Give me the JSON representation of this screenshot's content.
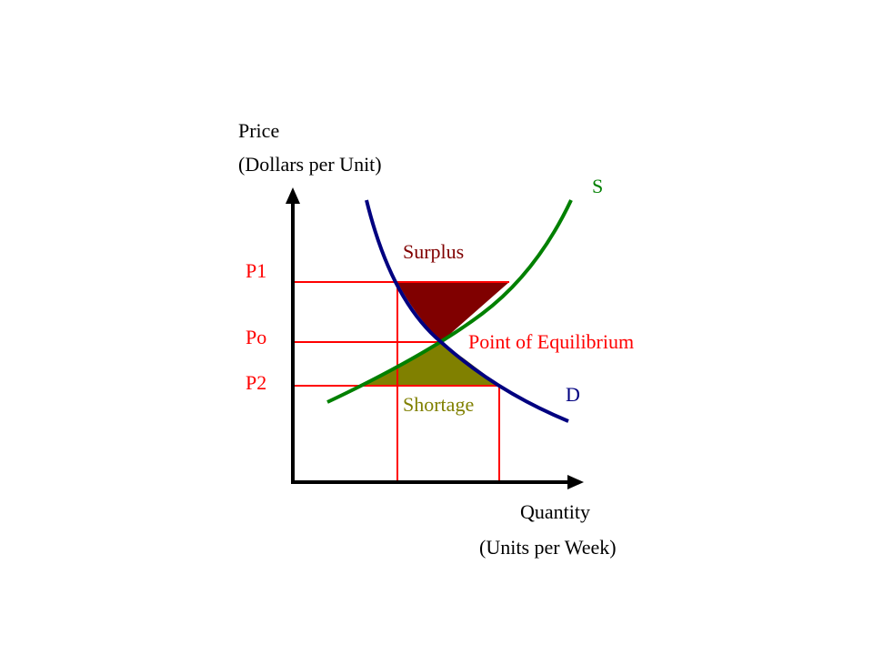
{
  "y_axis": {
    "title": "Price",
    "subtitle": "(Dollars per Unit)"
  },
  "x_axis": {
    "title": "Quantity",
    "subtitle": "(Units per Week)"
  },
  "prices": {
    "p1": "P1",
    "po": "Po",
    "p2": "P2"
  },
  "curves": {
    "supply": "S",
    "demand": "D"
  },
  "regions": {
    "surplus": "Surplus",
    "shortage": "Shortage"
  },
  "equilibrium": "Point of Equilibrium"
}
